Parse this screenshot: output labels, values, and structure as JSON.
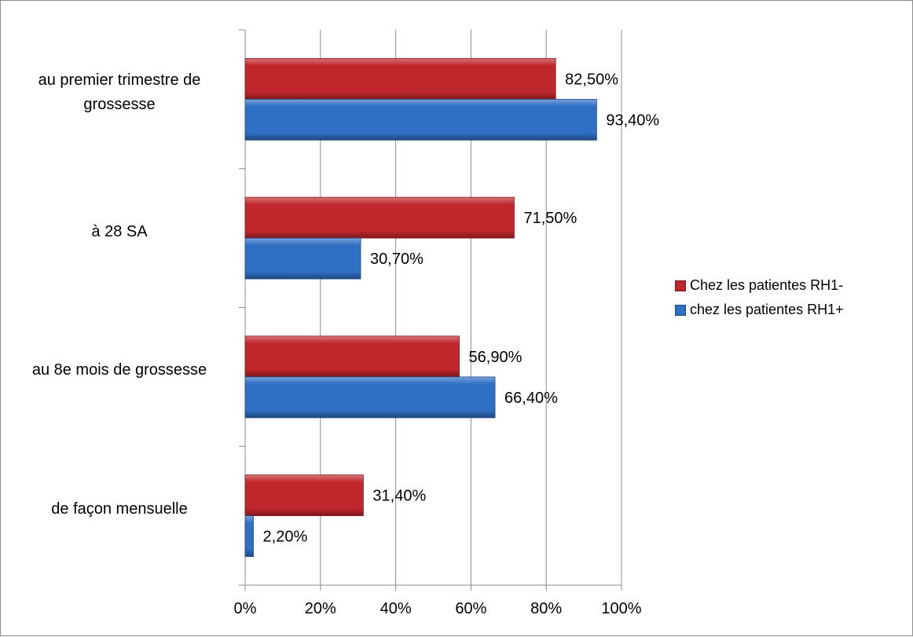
{
  "chart_data": {
    "type": "bar",
    "orientation": "horizontal",
    "categories": [
      "au premier trimestre de grossesse",
      "à 28 SA",
      "au 8e mois de grossesse",
      "de façon mensuelle"
    ],
    "series": [
      {
        "name": "Chez les patientes RH1-",
        "color": "#c0272d",
        "values": [
          82.5,
          71.5,
          56.9,
          31.4
        ],
        "labels": [
          "82,50%",
          "71,50%",
          "56,90%",
          "31,40%"
        ]
      },
      {
        "name": "chez les patientes RH1+",
        "color": "#2f6fc4",
        "values": [
          93.4,
          30.7,
          66.4,
          2.2
        ],
        "labels": [
          "93,40%",
          "30,70%",
          "66,40%",
          "2,20%"
        ]
      }
    ],
    "xlim": [
      0,
      100
    ],
    "xticks": [
      0,
      20,
      40,
      60,
      80,
      100
    ],
    "xtick_labels": [
      "0%",
      "20%",
      "40%",
      "60%",
      "80%",
      "100%"
    ],
    "grid": true,
    "legend_position": "right"
  }
}
